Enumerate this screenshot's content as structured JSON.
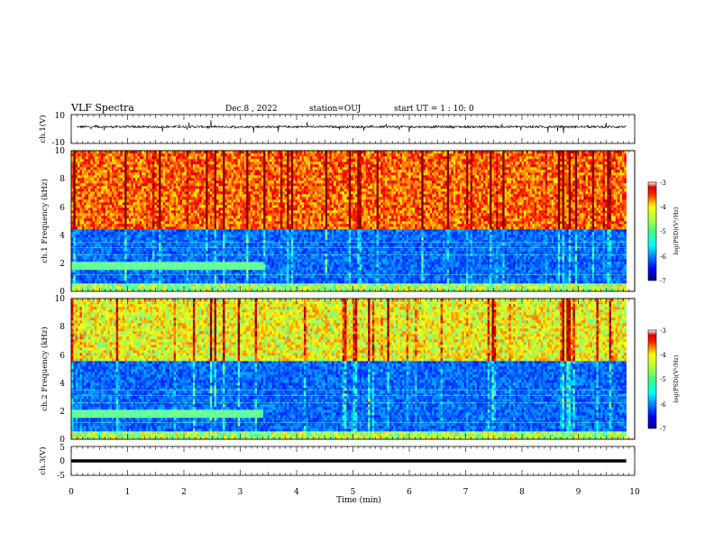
{
  "header": {
    "title": "VLF Spectra",
    "date": "Dec.8 , 2022",
    "station": "station=OUJ",
    "start": "start UT = 1 : 10: 0"
  },
  "chart_data": [
    {
      "type": "line",
      "name": "ch1-waveform",
      "ylabel": "ch.1(V)",
      "ylim": [
        -10,
        10
      ],
      "yticks": [
        "10",
        "-10"
      ],
      "xlim": [
        0,
        10
      ],
      "baseline": 1.5
    },
    {
      "type": "heatmap",
      "name": "ch1-spectrogram",
      "ylabel": "ch.1 Frequency (kHz)",
      "ylim": [
        0,
        10
      ],
      "yticks": [
        "0",
        "2",
        "4",
        "6",
        "8",
        "10"
      ],
      "xlim": [
        0,
        9.85
      ],
      "colorbar": {
        "label": "log(PSD)(V²/Hz)",
        "range": [
          -7,
          -3
        ],
        "ticks": [
          "-3",
          "-4",
          "-5",
          "-6",
          "-7"
        ]
      },
      "features": {
        "lower_band_top_khz": 4.5,
        "band_2khz_end_min": 3.4
      }
    },
    {
      "type": "heatmap",
      "name": "ch2-spectrogram",
      "ylabel": "ch.2 Frequency (kHz)",
      "ylim": [
        0,
        10
      ],
      "yticks": [
        "0",
        "2",
        "4",
        "6",
        "8",
        "10"
      ],
      "xlim": [
        0,
        9.85
      ],
      "colorbar": {
        "label": "log(PSD)(V²/Hz)",
        "range": [
          -7,
          -3
        ],
        "ticks": [
          "-3",
          "-4",
          "-5",
          "-6",
          "-7"
        ]
      },
      "features": {
        "lower_band_top_khz": 5.5,
        "band_2khz_end_min": 3.4
      }
    },
    {
      "type": "line",
      "name": "ch3-waveform",
      "ylabel": "ch.3(V)",
      "ylim": [
        -5,
        5
      ],
      "yticks": [
        "5",
        "0",
        "-5"
      ],
      "xlim": [
        0,
        10
      ],
      "baseline": 0
    }
  ],
  "xaxis": {
    "label": "Time (min)",
    "ticks": [
      "0",
      "1",
      "2",
      "3",
      "4",
      "5",
      "6",
      "7",
      "8",
      "9",
      "10"
    ]
  }
}
